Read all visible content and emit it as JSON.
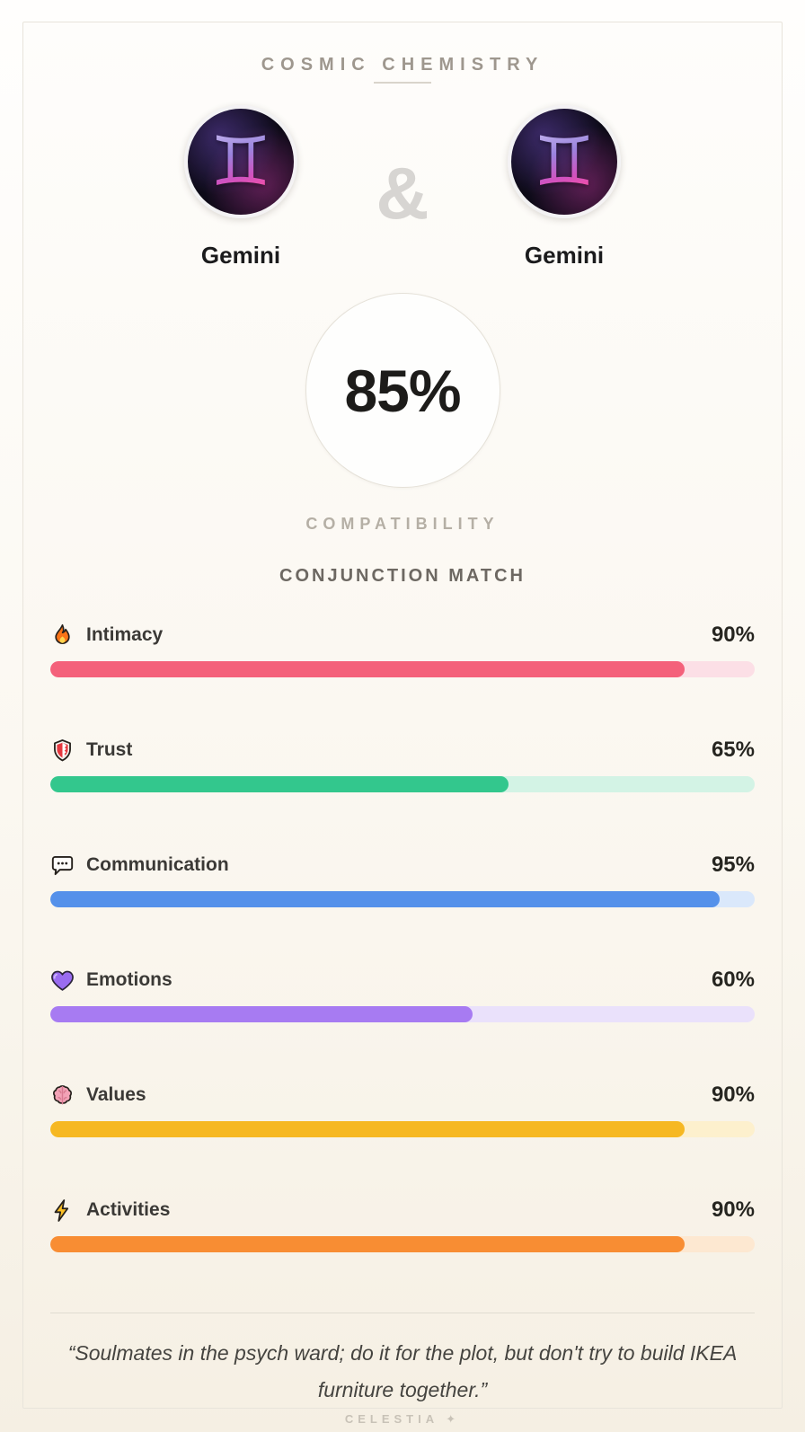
{
  "header": {
    "title": "COSMIC CHEMISTRY"
  },
  "pair": {
    "ampersand": "&",
    "left": {
      "name": "Gemini",
      "symbol": "♊"
    },
    "right": {
      "name": "Gemini",
      "symbol": "♊"
    }
  },
  "score": {
    "value": "85%",
    "caption": "COMPATIBILITY"
  },
  "match": {
    "title": "CONJUNCTION MATCH"
  },
  "stats": [
    {
      "label": "Intimacy",
      "value": "90%",
      "percent": 90,
      "icon": "flame-icon",
      "fill_color": "#f4617b",
      "track_color": "#fcdfe6"
    },
    {
      "label": "Trust",
      "value": "65%",
      "percent": 65,
      "icon": "shield-icon",
      "fill_color": "#33c78d",
      "track_color": "#d3f3e5"
    },
    {
      "label": "Communication",
      "value": "95%",
      "percent": 95,
      "icon": "speech-bubble-icon",
      "fill_color": "#5591ea",
      "track_color": "#dae8fb"
    },
    {
      "label": "Emotions",
      "value": "60%",
      "percent": 60,
      "icon": "purple-heart-icon",
      "fill_color": "#a77bf2",
      "track_color": "#eae1fb"
    },
    {
      "label": "Values",
      "value": "90%",
      "percent": 90,
      "icon": "brain-icon",
      "fill_color": "#f6b823",
      "track_color": "#fdf0cd"
    },
    {
      "label": "Activities",
      "value": "90%",
      "percent": 90,
      "icon": "lightning-icon",
      "fill_color": "#f88d33",
      "track_color": "#fde8d1"
    }
  ],
  "quote": {
    "text": "“Soulmates in the psych ward; do it for the plot, but don't try to build IKEA furniture together.”"
  },
  "footer": {
    "brand": "CELESTIA",
    "star": "✦"
  }
}
